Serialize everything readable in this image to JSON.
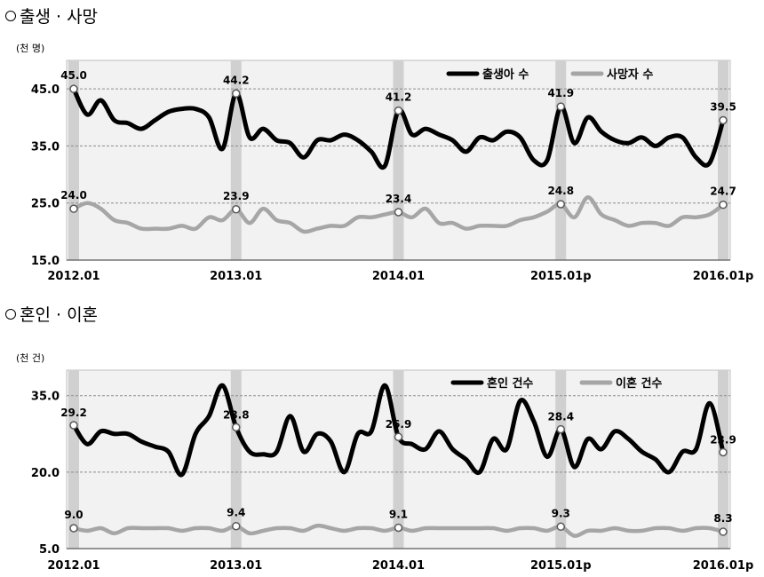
{
  "sections": [
    {
      "title": "출생 · 사망"
    },
    {
      "title": "혼인 · 이혼"
    }
  ],
  "chart_data": [
    {
      "type": "line",
      "ylabel": "(천 명)",
      "ylim": [
        15,
        50
      ],
      "yticks": [
        "15.0",
        "25.0",
        "35.0",
        "45.0"
      ],
      "ytick_values": [
        15,
        25,
        35,
        45
      ],
      "xtick_labels": [
        "2012.01",
        "2013.01",
        "2014.01",
        "2015.01p",
        "2016.01p"
      ],
      "xtick_index": [
        0,
        12,
        24,
        36,
        48
      ],
      "legend_position": "top-right",
      "series": [
        {
          "name": "출생아 수",
          "color": "#000000",
          "values": [
            45.0,
            40.5,
            43.0,
            39.5,
            39.0,
            38.0,
            39.5,
            41.0,
            41.5,
            41.5,
            40.0,
            34.5,
            44.2,
            36.5,
            38.0,
            36.0,
            35.5,
            33.0,
            36.0,
            36.0,
            37.0,
            36.0,
            34.0,
            31.5,
            41.2,
            37.0,
            38.0,
            37.0,
            36.0,
            34.0,
            36.5,
            36.0,
            37.5,
            36.5,
            32.5,
            32.5,
            41.9,
            35.5,
            40.0,
            37.5,
            36.0,
            35.5,
            36.5,
            35.0,
            36.5,
            36.5,
            33.0,
            32.0,
            39.5
          ]
        },
        {
          "name": "사망자 수",
          "color": "#a6a6a6",
          "values": [
            24.0,
            25.0,
            24.0,
            22.0,
            21.5,
            20.5,
            20.5,
            20.5,
            21.0,
            20.5,
            22.5,
            22.0,
            23.9,
            21.5,
            24.0,
            22.0,
            21.5,
            20.0,
            20.5,
            21.0,
            21.0,
            22.5,
            22.5,
            23.0,
            23.4,
            22.5,
            24.0,
            21.5,
            21.5,
            20.5,
            21.0,
            21.0,
            21.0,
            22.0,
            22.5,
            23.5,
            24.8,
            22.5,
            26.0,
            23.0,
            22.0,
            21.0,
            21.5,
            21.5,
            21.0,
            22.5,
            22.5,
            23.0,
            24.7
          ]
        }
      ],
      "annotations": [
        {
          "series": 0,
          "index": 0,
          "text": "45.0"
        },
        {
          "series": 0,
          "index": 12,
          "text": "44.2"
        },
        {
          "series": 0,
          "index": 24,
          "text": "41.2"
        },
        {
          "series": 0,
          "index": 36,
          "text": "41.9"
        },
        {
          "series": 0,
          "index": 48,
          "text": "39.5"
        },
        {
          "series": 1,
          "index": 0,
          "text": "24.0"
        },
        {
          "series": 1,
          "index": 12,
          "text": "23.9"
        },
        {
          "series": 1,
          "index": 24,
          "text": "23.4"
        },
        {
          "series": 1,
          "index": 36,
          "text": "24.8"
        },
        {
          "series": 1,
          "index": 48,
          "text": "24.7"
        }
      ]
    },
    {
      "type": "line",
      "ylabel": "(천 건)",
      "ylim": [
        5,
        40
      ],
      "yticks": [
        "5.0",
        "20.0",
        "35.0"
      ],
      "ytick_values": [
        5,
        20,
        35
      ],
      "xtick_labels": [
        "2012.01",
        "2013.01",
        "2014.01",
        "2015.01p",
        "2016.01p"
      ],
      "xtick_index": [
        0,
        12,
        24,
        36,
        48
      ],
      "legend_position": "top-right",
      "series": [
        {
          "name": "혼인 건수",
          "color": "#000000",
          "values": [
            29.2,
            25.5,
            28.0,
            27.5,
            27.5,
            26.0,
            25.0,
            24.0,
            19.5,
            27.5,
            31.0,
            37.0,
            28.8,
            24.0,
            23.5,
            24.0,
            31.0,
            24.0,
            27.5,
            26.0,
            20.0,
            27.5,
            28.0,
            37.0,
            26.9,
            25.5,
            24.5,
            28.0,
            24.5,
            22.5,
            20.0,
            26.5,
            24.5,
            34.0,
            30.0,
            23.0,
            28.4,
            21.0,
            26.5,
            24.5,
            28.0,
            26.5,
            24.0,
            22.5,
            20.0,
            24.0,
            24.5,
            33.5,
            23.9
          ]
        },
        {
          "name": "이혼 건수",
          "color": "#a6a6a6",
          "values": [
            9.0,
            8.5,
            9.0,
            8.0,
            9.0,
            9.0,
            9.0,
            9.0,
            8.5,
            9.0,
            9.0,
            8.5,
            9.4,
            8.0,
            8.5,
            9.0,
            9.0,
            8.5,
            9.5,
            9.0,
            8.5,
            9.0,
            9.0,
            8.5,
            9.1,
            8.5,
            9.0,
            9.0,
            9.0,
            9.0,
            9.0,
            9.0,
            8.5,
            9.0,
            9.0,
            8.5,
            9.3,
            7.5,
            8.5,
            8.5,
            9.0,
            8.5,
            8.5,
            9.0,
            9.0,
            8.5,
            9.0,
            9.0,
            8.3
          ]
        }
      ],
      "annotations": [
        {
          "series": 0,
          "index": 0,
          "text": "29.2"
        },
        {
          "series": 0,
          "index": 12,
          "text": "28.8"
        },
        {
          "series": 0,
          "index": 24,
          "text": "26.9"
        },
        {
          "series": 0,
          "index": 36,
          "text": "28.4"
        },
        {
          "series": 0,
          "index": 48,
          "text": "23.9"
        },
        {
          "series": 1,
          "index": 0,
          "text": "9.0"
        },
        {
          "series": 1,
          "index": 12,
          "text": "9.4"
        },
        {
          "series": 1,
          "index": 24,
          "text": "9.1"
        },
        {
          "series": 1,
          "index": 36,
          "text": "9.3"
        },
        {
          "series": 1,
          "index": 48,
          "text": "8.3"
        }
      ]
    }
  ]
}
